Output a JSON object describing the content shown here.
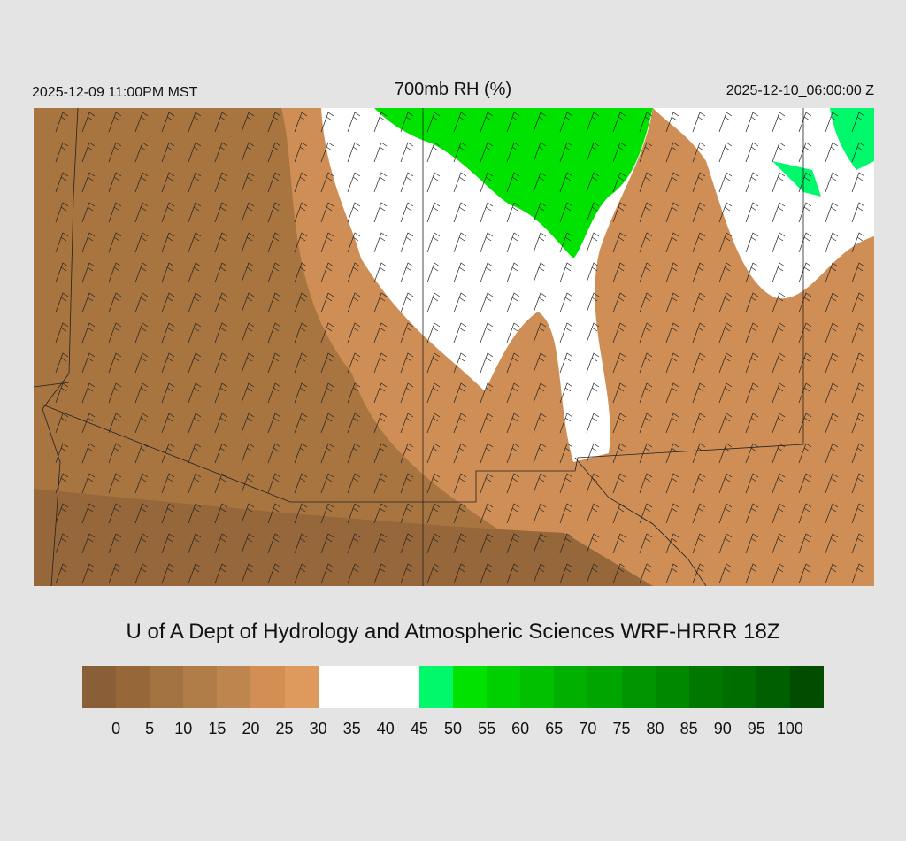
{
  "header": {
    "valid_local": "2025-12-09 11:00PM MST",
    "title": "700mb RH (%)",
    "valid_utc": "2025-12-10_06:00:00 Z"
  },
  "credit": "U of A Dept of Hydrology and Atmospheric Sciences WRF-HRRR 18Z",
  "legend": {
    "colors": [
      "#8a5e36",
      "#966739",
      "#a37241",
      "#b07c48",
      "#be864e",
      "#d38f53",
      "#de9a5c",
      "#ffffff",
      "#ffffff",
      "#ffffff",
      "#00f86a",
      "#00e200",
      "#00d000",
      "#00c000",
      "#00b000",
      "#00a500",
      "#009500",
      "#008800",
      "#007800",
      "#006d00",
      "#005f00",
      "#004d00"
    ],
    "labels": [
      "0",
      "5",
      "10",
      "15",
      "20",
      "25",
      "30",
      "35",
      "40",
      "45",
      "50",
      "55",
      "60",
      "65",
      "70",
      "75",
      "80",
      "85",
      "90",
      "95",
      "100"
    ]
  },
  "map": {
    "field": "700mb relative humidity with wind barbs",
    "low_color": "#b07c48",
    "mid_color": "#d38f53",
    "moist_color": "#ffffff",
    "wet_color": "#00e200"
  }
}
